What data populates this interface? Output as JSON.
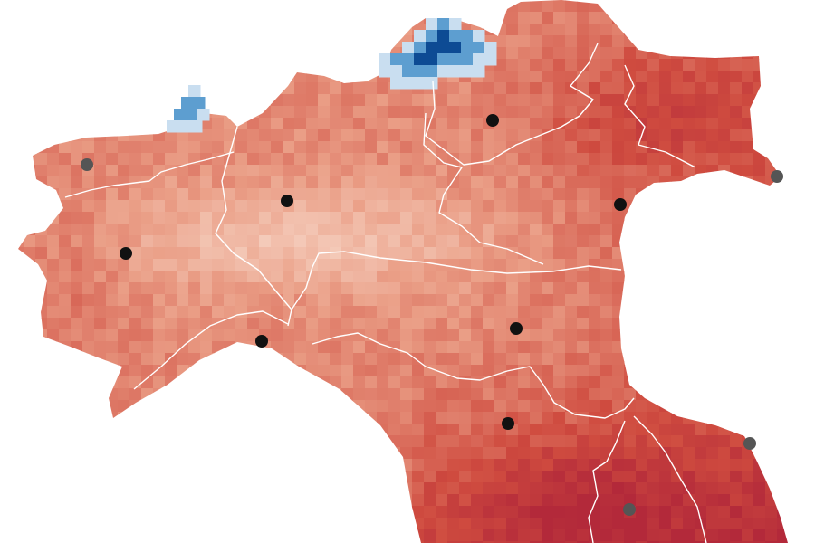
{
  "map": {
    "colors": {
      "background": "#ffffff",
      "warm_light": "#f6d2c2",
      "warm_mid": "#ea9e86",
      "warm_dark": "#cf4b3f",
      "warm_deep": "#b3293a",
      "cold_light": "#c9def0",
      "cold_mid": "#5d9ed0",
      "cold_deep": "#0d4b94",
      "border": "#ffffff",
      "city_primary": "#111111",
      "city_secondary": "#555555"
    },
    "legend": null,
    "cities": [
      {
        "id": "city-aosta",
        "tier": "secondary"
      },
      {
        "id": "city-milan",
        "tier": "primary"
      },
      {
        "id": "city-turin",
        "tier": "primary"
      },
      {
        "id": "city-genoa",
        "tier": "primary"
      },
      {
        "id": "city-trento",
        "tier": "primary"
      },
      {
        "id": "city-venice",
        "tier": "primary"
      },
      {
        "id": "city-trieste",
        "tier": "secondary"
      },
      {
        "id": "city-bologna",
        "tier": "primary"
      },
      {
        "id": "city-florence",
        "tier": "primary"
      },
      {
        "id": "city-ancona",
        "tier": "secondary"
      },
      {
        "id": "city-perugia",
        "tier": "secondary"
      }
    ]
  }
}
